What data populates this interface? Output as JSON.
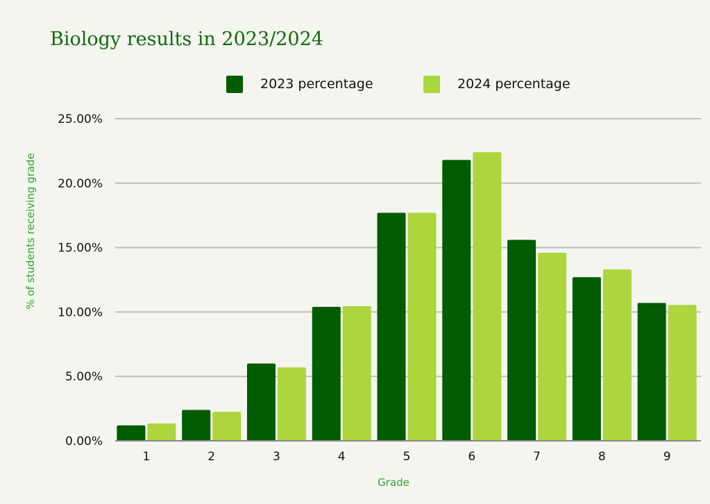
{
  "chart_data": {
    "type": "bar",
    "title": "Biology results in 2023/2024",
    "xlabel": "Grade",
    "ylabel": "% of students receiving grade",
    "categories": [
      "1",
      "2",
      "3",
      "4",
      "5",
      "6",
      "7",
      "8",
      "9"
    ],
    "series": [
      {
        "name": "2023 percentage",
        "color": "#005c00",
        "values": [
          1.2,
          2.4,
          6.0,
          10.4,
          17.7,
          21.8,
          15.6,
          12.7,
          10.7
        ]
      },
      {
        "name": "2024 percentage",
        "color": "#acd63b",
        "values": [
          1.35,
          2.25,
          5.7,
          10.45,
          17.7,
          22.4,
          14.6,
          13.3,
          10.55
        ]
      }
    ],
    "ylim": [
      0,
      25
    ],
    "yticks": [
      0,
      5,
      10,
      15,
      20,
      25
    ],
    "ytick_labels": [
      "0.00%",
      "5.00%",
      "10.00%",
      "15.00%",
      "20.00%",
      "25.00%"
    ],
    "grid": true,
    "legend_position": "top"
  }
}
